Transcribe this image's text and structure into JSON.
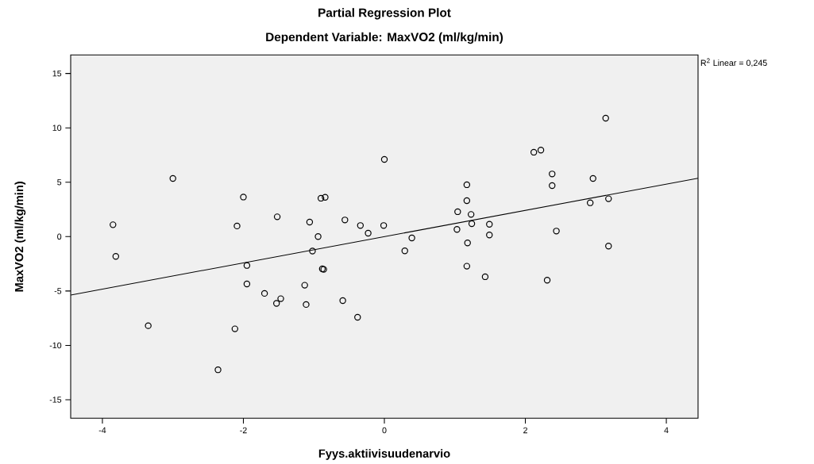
{
  "chart_data": {
    "type": "scatter",
    "title": "Partial Regression Plot",
    "subtitle": "Dependent Variable: MaxVO2 (ml/kg/min)",
    "xlabel": "Fyys.aktiivisuudenarvio",
    "ylabel": "MaxVO2 (ml/kg/min)",
    "annotations": [
      "R$^{2}$ Linear = 0,245"
    ],
    "xlim": [
      -4.45,
      4.45
    ],
    "ylim": [
      -16.7,
      16.7
    ],
    "xticks": [
      -4,
      -2,
      0,
      2,
      4
    ],
    "yticks": [
      -15,
      -10,
      -5,
      0,
      5,
      10,
      15
    ],
    "series": [
      {
        "marker": "circle",
        "color": "#000000",
        "x": [
          -3.85,
          -3.81,
          -3.0,
          -3.35,
          -2.0,
          -2.09,
          -1.95,
          -1.95,
          -2.12,
          -2.36,
          -1.52,
          -1.7,
          -1.47,
          -1.53,
          -1.06,
          -0.94,
          -0.9,
          -0.84,
          -1.02,
          -0.86,
          -0.88,
          -1.13,
          -1.11,
          -0.56,
          -0.59,
          -0.38,
          -0.34,
          -0.23,
          -0.01,
          0.0,
          0.39,
          0.29,
          1.17,
          1.17,
          1.04,
          1.23,
          1.24,
          1.03,
          1.49,
          1.49,
          1.18,
          1.17,
          1.43,
          2.31,
          3.18,
          2.44,
          2.12,
          2.22,
          2.38,
          2.38,
          2.96,
          2.92,
          3.18,
          3.14
        ],
        "values": [
          1.09,
          -1.82,
          5.35,
          -8.19,
          3.64,
          0.98,
          -2.65,
          -4.35,
          -8.48,
          -12.24,
          1.82,
          -5.22,
          -5.71,
          -6.14,
          1.34,
          0.0,
          3.53,
          3.62,
          -1.33,
          -3.01,
          -2.97,
          -4.47,
          -6.24,
          1.53,
          -5.88,
          -7.41,
          1.02,
          0.32,
          1.02,
          7.1,
          -0.12,
          -1.31,
          4.77,
          3.31,
          2.29,
          2.04,
          1.19,
          0.66,
          1.14,
          0.15,
          -0.58,
          -2.72,
          -3.69,
          -4.01,
          -0.87,
          0.51,
          7.76,
          7.95,
          5.76,
          4.69,
          5.35,
          3.11,
          3.48,
          10.89
        ]
      },
      {
        "type": "line",
        "marker": "none",
        "color": "#000000",
        "x": [
          -4.45,
          4.45
        ],
        "values": [
          -5.37,
          5.37
        ]
      }
    ]
  }
}
